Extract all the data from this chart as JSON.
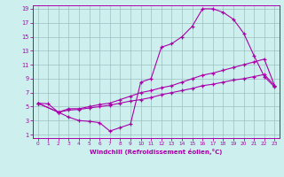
{
  "xlabel": "Windchill (Refroidissement éolien,°C)",
  "background_color": "#cdf0ef",
  "grid_color": "#9bbfbf",
  "line_color": "#aa00aa",
  "xlim": [
    -0.5,
    23.5
  ],
  "ylim": [
    0.5,
    19.5
  ],
  "xticks": [
    0,
    1,
    2,
    3,
    4,
    5,
    6,
    7,
    8,
    9,
    10,
    11,
    12,
    13,
    14,
    15,
    16,
    17,
    18,
    19,
    20,
    21,
    22,
    23
  ],
  "yticks": [
    1,
    3,
    5,
    7,
    9,
    11,
    13,
    15,
    17,
    19
  ],
  "curve1_x": [
    0,
    1,
    2,
    3,
    4,
    5,
    6,
    7,
    8,
    9,
    10,
    11,
    12,
    13,
    14,
    15,
    16,
    17,
    18,
    19,
    20,
    21,
    22,
    23
  ],
  "curve1_y": [
    5.5,
    5.4,
    4.2,
    3.5,
    3.0,
    2.9,
    2.7,
    1.5,
    2.0,
    2.5,
    8.5,
    9.0,
    13.5,
    14.0,
    15.0,
    16.5,
    19.0,
    19.0,
    18.5,
    17.5,
    15.5,
    12.3,
    9.3,
    7.8
  ],
  "curve2_x": [
    0,
    2,
    3,
    4,
    5,
    6,
    7,
    8,
    9,
    10,
    11,
    12,
    13,
    14,
    15,
    16,
    17,
    18,
    19,
    20,
    21,
    22,
    23
  ],
  "curve2_y": [
    5.5,
    4.2,
    4.7,
    4.7,
    5.0,
    5.3,
    5.5,
    6.0,
    6.5,
    7.0,
    7.3,
    7.7,
    8.0,
    8.5,
    9.0,
    9.5,
    9.8,
    10.2,
    10.6,
    11.0,
    11.4,
    11.8,
    8.0
  ],
  "curve3_x": [
    0,
    2,
    3,
    4,
    5,
    6,
    7,
    8,
    9,
    10,
    11,
    12,
    13,
    14,
    15,
    16,
    17,
    18,
    19,
    20,
    21,
    22,
    23
  ],
  "curve3_y": [
    5.5,
    4.2,
    4.5,
    4.6,
    4.8,
    5.0,
    5.2,
    5.5,
    5.8,
    6.0,
    6.3,
    6.7,
    7.0,
    7.3,
    7.6,
    8.0,
    8.2,
    8.5,
    8.8,
    9.0,
    9.3,
    9.6,
    8.0
  ]
}
